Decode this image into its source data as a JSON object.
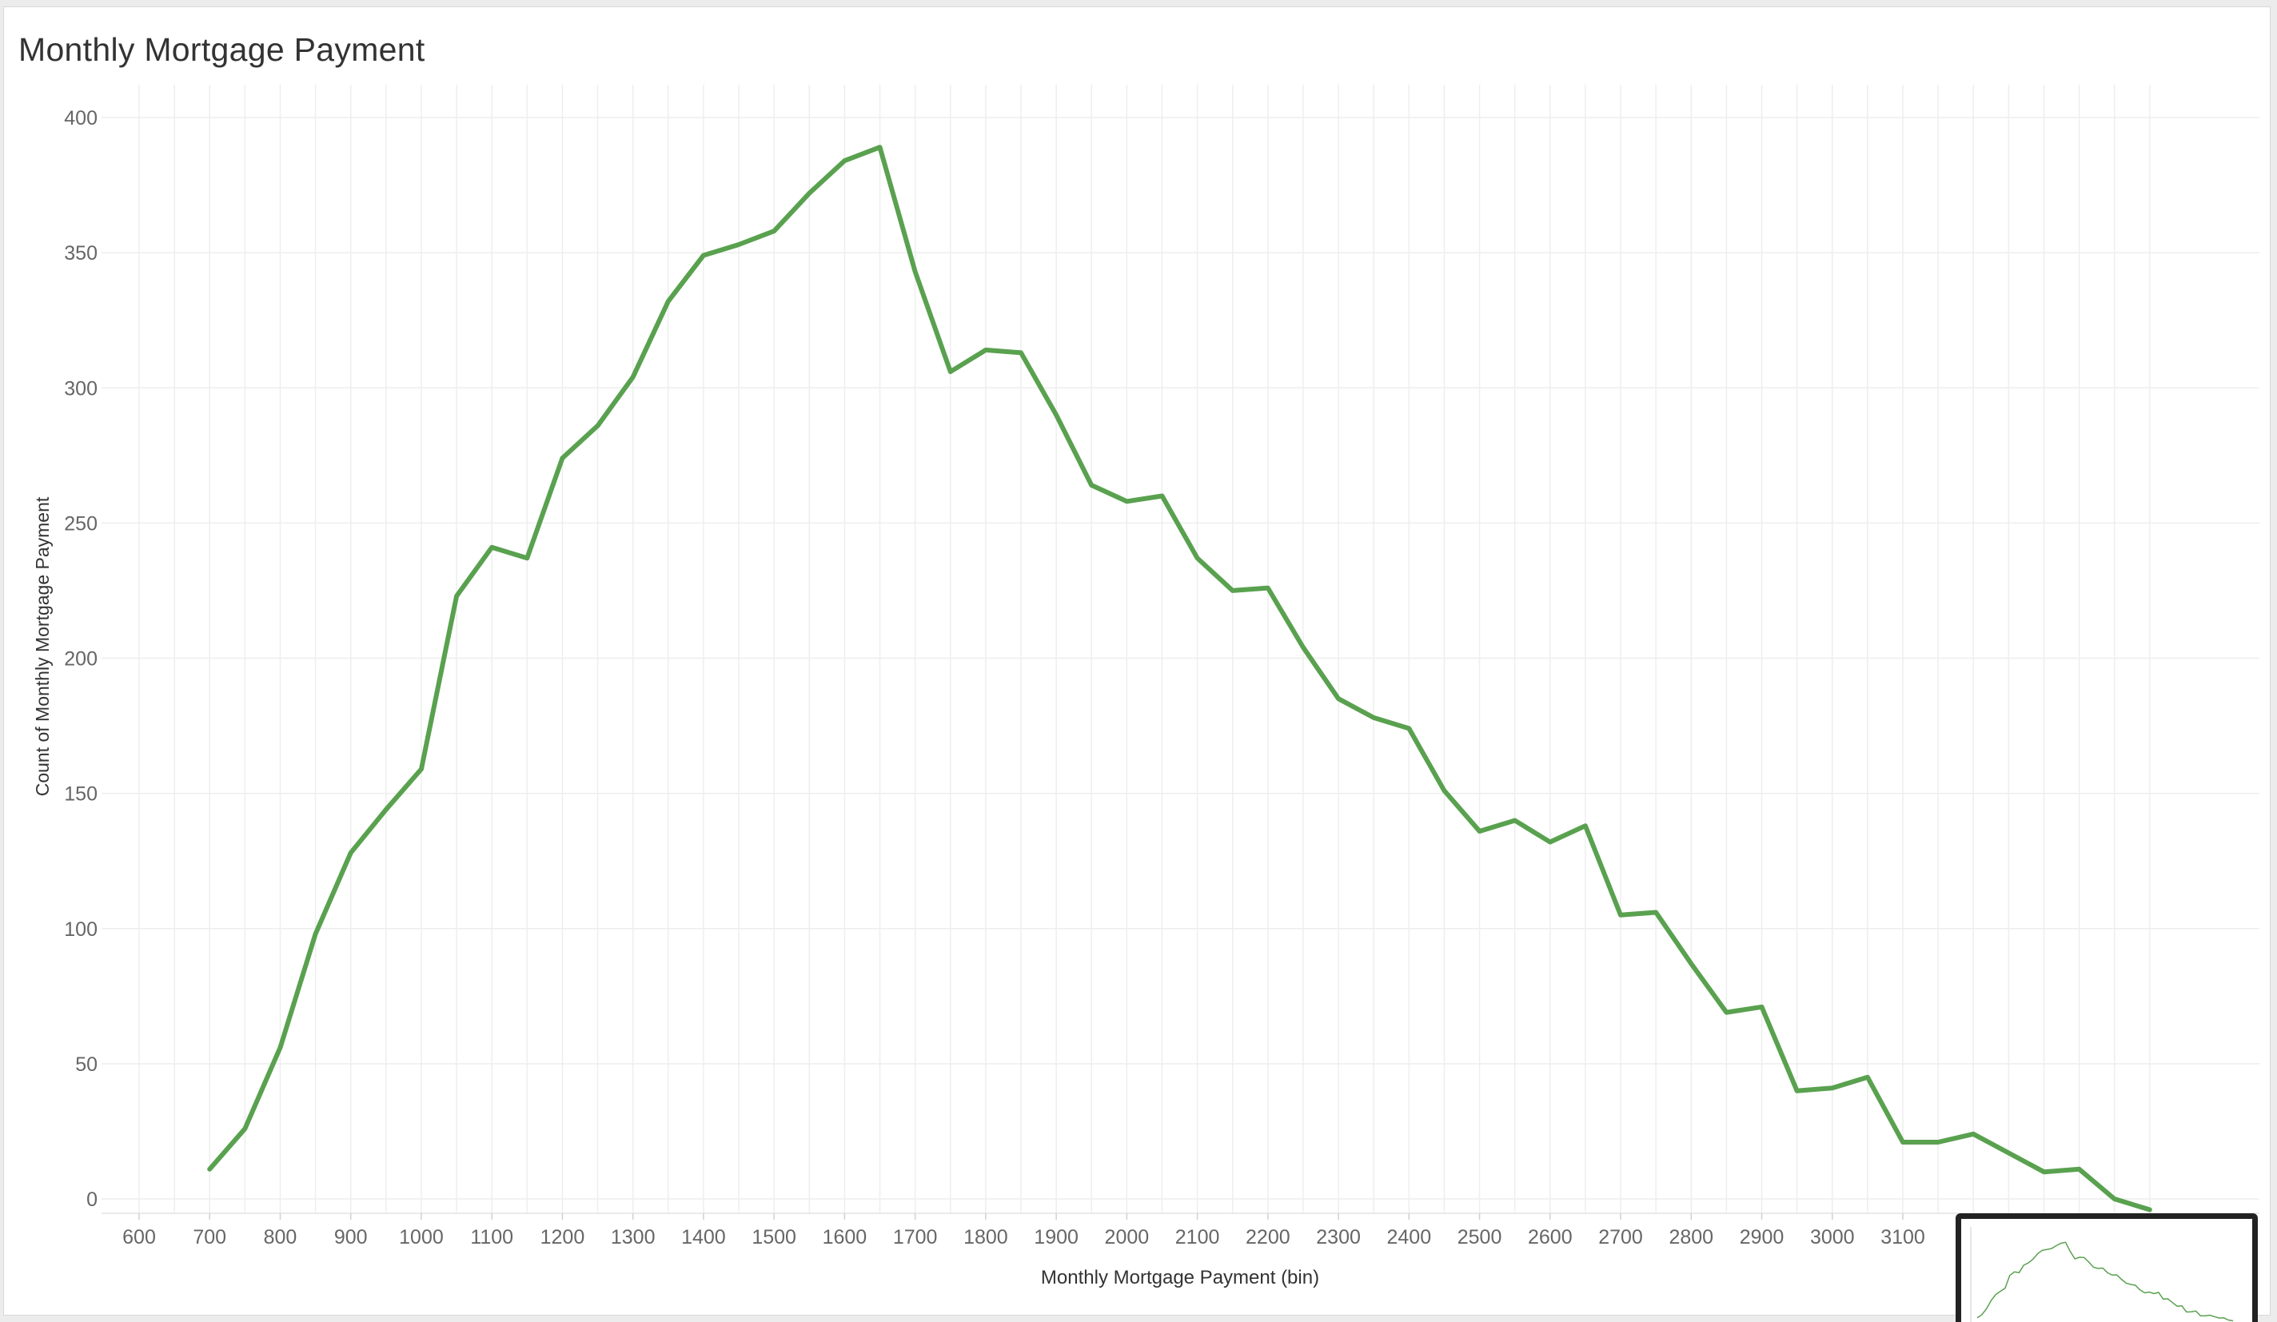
{
  "chart_data": {
    "type": "line",
    "title": "Monthly Mortgage Payment",
    "xlabel": "Monthly Mortgage Payment (bin)",
    "ylabel": "Count of Monthly Mortgage Payment",
    "xlim": [
      575,
      3525
    ],
    "ylim": [
      -5,
      410
    ],
    "grid": true,
    "x_ticks": [
      600,
      700,
      800,
      900,
      1000,
      1100,
      1200,
      1300,
      1400,
      1500,
      1600,
      1700,
      1800,
      1900,
      2000,
      2100,
      2200,
      2300,
      2400,
      2500,
      2600,
      2700,
      2800,
      2900,
      3000,
      3100
    ],
    "y_ticks": [
      0,
      50,
      100,
      150,
      200,
      250,
      300,
      350,
      400
    ],
    "color": "#59a14f",
    "series": [
      {
        "x": [
          700,
          750,
          800,
          850,
          900,
          950,
          1000,
          1050,
          1100,
          1150,
          1200,
          1250,
          1300,
          1350,
          1400,
          1450,
          1500,
          1550,
          1600,
          1650,
          1700,
          1750,
          1800,
          1850,
          1900,
          1950,
          2000,
          2050,
          2100,
          2150,
          2200,
          2250,
          2300,
          2350,
          2400,
          2450,
          2500,
          2550,
          2600,
          2650,
          2700,
          2750,
          2800,
          2850,
          2900,
          2950,
          3000,
          3050,
          3100,
          3150,
          3200,
          3250,
          3300,
          3350,
          3400,
          3450
        ],
        "values": [
          11,
          26,
          56,
          98,
          128,
          144,
          159,
          223,
          241,
          237,
          274,
          286,
          304,
          332,
          349,
          353,
          358,
          372,
          384,
          389,
          343,
          306,
          314,
          313,
          290,
          264,
          258,
          260,
          237,
          225,
          226,
          204,
          185,
          178,
          174,
          151,
          136,
          140,
          132,
          138,
          105,
          106,
          87,
          69,
          71,
          40,
          41,
          45,
          21,
          21,
          24,
          17,
          10,
          11,
          0,
          -4
        ]
      }
    ]
  },
  "thumbnail": {
    "label": "minimap preview"
  }
}
